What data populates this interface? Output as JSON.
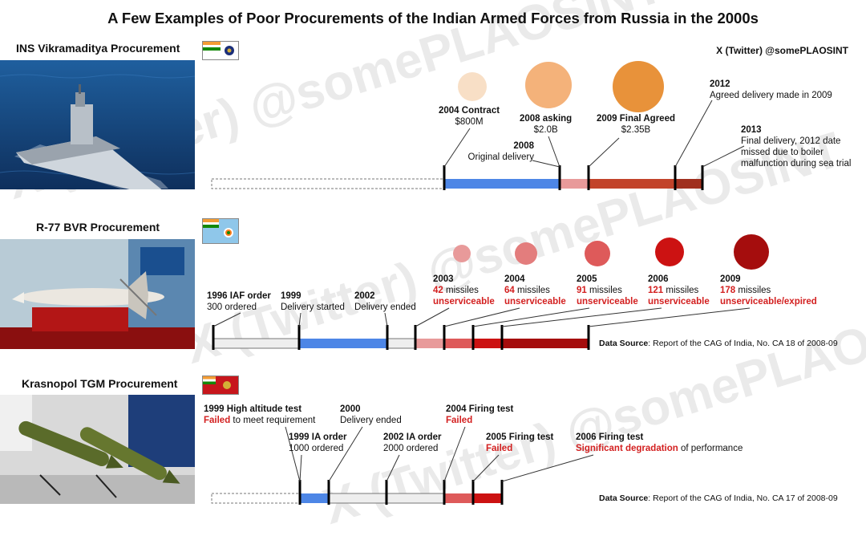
{
  "title": "A Few Examples of Poor Procurements of the Indian Armed Forces from Russia in the 2000s",
  "credit": "X (Twitter) @somePLAOSINT",
  "watermark": "X (Twitter) @somePLAOSINT",
  "colors": {
    "blue": "#4d86e6",
    "light_gray": "#eeeeee",
    "pink": "#e89a9a",
    "red": "#cc1212",
    "dark_red": "#a50d0d",
    "rust": "#c2432a",
    "orange_light": "#f8dfc6",
    "orange_mid": "#f4b27a",
    "orange_dark": "#e8923a"
  },
  "sections": {
    "ins": {
      "title": "INS Vikramaditya Procurement",
      "events": [
        {
          "head": "2004 Contract",
          "sub": "$800M"
        },
        {
          "head": "2008 asking",
          "sub": "$2.0B"
        },
        {
          "head": "2009 Final Agreed",
          "sub": "$2.35B"
        },
        {
          "head": "2008",
          "sub": "Original delivery"
        },
        {
          "head": "2012",
          "sub": "Agreed delivery made in 2009"
        },
        {
          "head": "2013",
          "sub": "Final delivery, 2012 date",
          "sub2": "missed due to boiler",
          "sub3": "malfunction during sea trial"
        }
      ]
    },
    "r77": {
      "title": "R-77 BVR Procurement",
      "events": [
        {
          "head": "1996 IAF order",
          "sub": "300 ordered"
        },
        {
          "head": "1999",
          "sub": "Delivery started"
        },
        {
          "head": "2002",
          "sub": "Delivery ended"
        }
      ],
      "unserviceable": [
        {
          "year": "2003",
          "count": "42",
          "unit": "missiles",
          "status": "unserviceable"
        },
        {
          "year": "2004",
          "count": "64",
          "unit": "missiles",
          "status": "unserviceable"
        },
        {
          "year": "2005",
          "count": "91",
          "unit": "missiles",
          "status": "unserviceable"
        },
        {
          "year": "2006",
          "count": "121",
          "unit": "missiles",
          "status": "unserviceable"
        },
        {
          "year": "2009",
          "count": "178",
          "unit": "missiles",
          "status": "unserviceable/expired"
        }
      ],
      "source_bold": "Data Source",
      "source_rest": ": Report of the CAG of India, No. CA 18 of 2008-09"
    },
    "kras": {
      "title": "Krasnopol TGM Procurement",
      "events": [
        {
          "head": "1999 High altitude test",
          "red": "Failed",
          "rest": " to meet requirement"
        },
        {
          "head": "1999 IA order",
          "sub": "1000 ordered"
        },
        {
          "head": "2000",
          "sub": "Delivery ended"
        },
        {
          "head": "2002 IA order",
          "sub": "2000 ordered"
        },
        {
          "head": "2004 Firing test",
          "red": "Failed"
        },
        {
          "head": "2005 Firing test",
          "red": "Failed"
        },
        {
          "head": "2006 Firing test",
          "red": "Significant degradation",
          "rest": " of performance"
        }
      ],
      "source_bold": "Data Source",
      "source_rest": ": Report of the CAG of India, No. CA 17 of 2008-09"
    }
  }
}
